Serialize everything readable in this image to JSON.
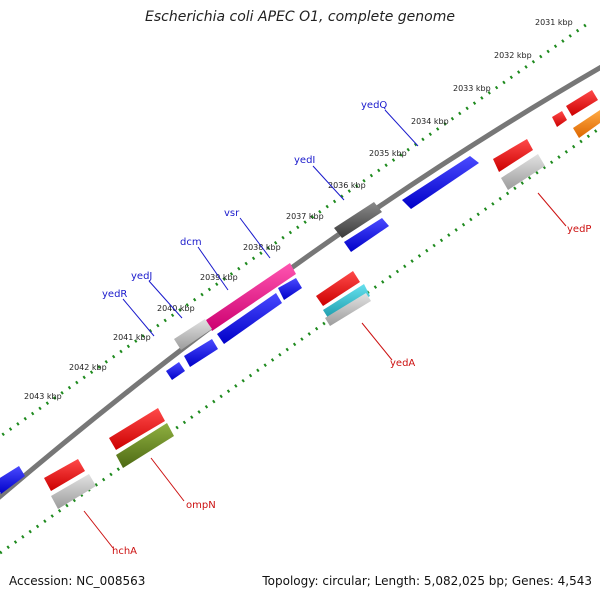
{
  "title": "Escherichia coli APEC O1, complete genome",
  "accession_text": "Accession: NC_008563",
  "summary_text": "Topology: circular; Length: 5,082,025 bp; Genes: 4,543",
  "ticks": [
    "2031 kbp",
    "2032 kbp",
    "2033 kbp",
    "2034 kbp",
    "2035 kbp",
    "2036 kbp",
    "2037 kbp",
    "2038 kbp",
    "2039 kbp",
    "2040 kbp",
    "2041 kbp",
    "2042 kbp",
    "2043 kbp"
  ],
  "genes_upper": [
    "yedQ",
    "yedI",
    "vsr",
    "dcm",
    "yedJ",
    "yedR"
  ],
  "genes_lower": [
    "yedP",
    "yedA",
    "ompN",
    "hchA"
  ],
  "colors": {
    "backbone": "#7a7a7a",
    "tick_track": "#1e8a1e",
    "label_upper": "#1a1acc",
    "label_lower": "#cc1111",
    "blue": "#1010ee",
    "red": "#ee1111",
    "grey": "#b8b8b8",
    "dark_grey": "#555555",
    "pink": "#ee1488",
    "olive": "#668822",
    "cyan": "#22b8c8",
    "orange": "#ff8800"
  }
}
